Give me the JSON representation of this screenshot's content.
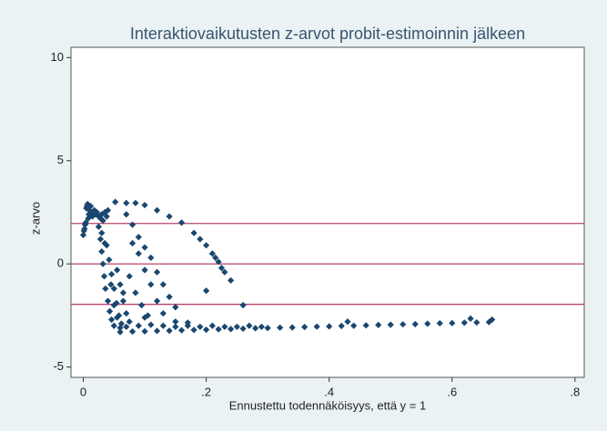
{
  "chart_data": {
    "type": "scatter",
    "title": "Interaktiovaikutusten z-arvot probit-estimoinnin jälkeen",
    "x_label": "Ennustettu todennäköisyys, että y = 1",
    "y_label": "z-arvo",
    "color": "#1a476f",
    "xlim": [
      -0.02,
      0.815
    ],
    "ylim": [
      -5.5,
      10.5
    ],
    "xticks": [
      0,
      {
        "value": 0.2,
        "label": ".2"
      },
      {
        "value": 0.4,
        "label": ".4"
      },
      {
        "value": 0.6,
        "label": ".6"
      },
      {
        "value": 0.8,
        "label": ".8"
      }
    ],
    "yticks": [
      -5,
      0,
      5,
      10
    ],
    "hlines": [
      1.96,
      0,
      -1.96
    ],
    "hline_color": "#b8456c",
    "x": [
      0,
      0.002,
      0.004,
      0.005,
      0.007,
      0.008,
      0.01,
      0.012,
      0.014,
      0.015,
      0.018,
      0.02,
      0.022,
      0.025,
      0.028,
      0.03,
      0.032,
      0.035,
      0.038,
      0.04,
      0.001,
      0.003,
      0.006,
      0.009,
      0.025,
      0.028,
      0.03,
      0.032,
      0.034,
      0.036,
      0.04,
      0.043,
      0.046,
      0.05,
      0.038,
      0.042,
      0.046,
      0.05,
      0.054,
      0.058,
      0.062,
      0.03,
      0.035,
      0.045,
      0.055,
      0.06,
      0.065,
      0.07,
      0.075,
      0.05,
      0.055,
      0.06,
      0.052,
      0.07,
      0.085,
      0.1,
      0.12,
      0.14,
      0.16,
      0.18,
      0.2,
      0.21,
      0.22,
      0.23,
      0.24,
      0.19,
      0.215,
      0.225,
      0.07,
      0.08,
      0.09,
      0.1,
      0.11,
      0.12,
      0.13,
      0.14,
      0.15,
      0.08,
      0.09,
      0.1,
      0.11,
      0.12,
      0.13,
      0.075,
      0.085,
      0.095,
      0.105,
      0.2,
      0.26,
      0.1,
      0.065,
      0.06,
      0.08,
      0.1,
      0.12,
      0.14,
      0.16,
      0.18,
      0.2,
      0.22,
      0.24,
      0.26,
      0.28,
      0.3,
      0.32,
      0.34,
      0.36,
      0.38,
      0.4,
      0.42,
      0.44,
      0.46,
      0.48,
      0.5,
      0.52,
      0.54,
      0.56,
      0.58,
      0.6,
      0.62,
      0.64,
      0.66,
      0.07,
      0.09,
      0.11,
      0.13,
      0.15,
      0.17,
      0.19,
      0.21,
      0.23,
      0.25,
      0.27,
      0.29,
      0.15,
      0.17,
      0.43,
      0.63,
      0.665
    ],
    "values": [
      1.4,
      1.7,
      2.0,
      2.7,
      2.9,
      2.2,
      2.6,
      2.8,
      2.5,
      2.3,
      2.6,
      2.4,
      2.5,
      2.3,
      2.2,
      2.4,
      2.1,
      2.5,
      2.3,
      2.6,
      1.6,
      1.9,
      2.8,
      2.4,
      1.8,
      1.2,
      0.6,
      0,
      -0.6,
      -1.2,
      -1.8,
      -2.3,
      -2.7,
      -3.0,
      0.9,
      0.2,
      -0.5,
      -1.2,
      -1.9,
      -2.5,
      -2.9,
      1.5,
      1.0,
      -1.0,
      -0.3,
      -1.0,
      -1.8,
      -2.4,
      -2.8,
      -2.0,
      -2.6,
      -3.1,
      3.0,
      2.95,
      2.95,
      2.85,
      2.6,
      2.3,
      2.0,
      1.5,
      0.9,
      0.5,
      0.1,
      -0.4,
      -0.8,
      1.2,
      0.3,
      -0.2,
      2.4,
      1.9,
      1.3,
      0.8,
      0.3,
      -0.4,
      -1.0,
      -1.6,
      -2.1,
      1.0,
      0.5,
      -0.3,
      -1.0,
      -1.8,
      -2.4,
      -0.6,
      -1.4,
      -2.0,
      -2.5,
      -1.3,
      -2.0,
      -2.6,
      -1.4,
      -3.3,
      -3.28,
      -3.27,
      -3.25,
      -3.24,
      -3.22,
      -3.2,
      -3.19,
      -3.17,
      -3.16,
      -3.14,
      -3.12,
      -3.11,
      -3.09,
      -3.08,
      -3.06,
      -3.04,
      -3.03,
      -3.01,
      -3.0,
      -2.98,
      -2.96,
      -2.95,
      -2.93,
      -2.92,
      -2.9,
      -2.88,
      -2.87,
      -2.85,
      -2.84,
      -2.82,
      -3.05,
      -3.0,
      -2.95,
      -3.0,
      -3.05,
      -3.0,
      -3.05,
      -3.0,
      -3.05,
      -3.05,
      -3.0,
      -3.05,
      -2.8,
      -2.85,
      -2.8,
      -2.65,
      -2.7
    ]
  }
}
